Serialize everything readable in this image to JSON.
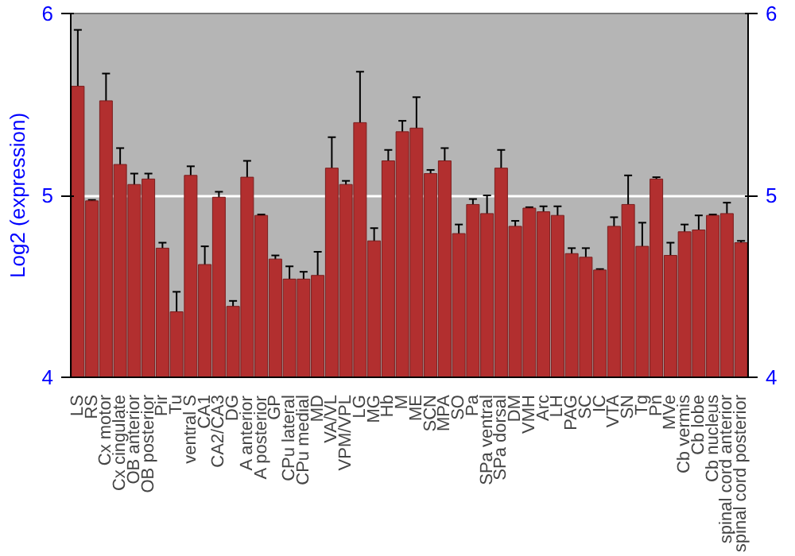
{
  "chart_data": {
    "type": "bar",
    "ylabel": "Log2 (expression)",
    "categories": [
      "LS",
      "RS",
      "Cx motor",
      "Cx cingulate",
      "OB anterior",
      "OB posterior",
      "Pir",
      "Tu",
      "ventral S",
      "CA1",
      "CA2/CA3",
      "DG",
      "A anterior",
      "A posterior",
      "GP",
      "CPu lateral",
      "CPu medial",
      "MD",
      "VA/VL",
      "VPM/VPL",
      "LG",
      "MG",
      "Hb",
      "M",
      "ME",
      "SCN",
      "MPA",
      "SO",
      "Pa",
      "SPa ventral",
      "SPa dorsal",
      "DM",
      "VMH",
      "Arc",
      "LH",
      "PAG",
      "SC",
      "IC",
      "VTA",
      "SN",
      "Tg",
      "Pn",
      "MVe",
      "Cb vermis",
      "Cb lobe",
      "Cb nucleus",
      "spinal cord anterior",
      "spinal cord posterior"
    ],
    "values": [
      5.6,
      4.97,
      5.52,
      5.17,
      5.06,
      5.09,
      4.71,
      4.36,
      5.11,
      4.62,
      4.99,
      4.39,
      5.1,
      4.89,
      4.65,
      4.54,
      4.54,
      4.56,
      5.15,
      5.06,
      5.4,
      4.75,
      5.19,
      5.35,
      5.37,
      5.12,
      5.19,
      4.79,
      4.95,
      4.9,
      5.15,
      4.83,
      4.93,
      4.91,
      4.89,
      4.68,
      4.66,
      4.59,
      4.83,
      4.95,
      4.72,
      5.09,
      4.67,
      4.8,
      4.81,
      4.89,
      4.9,
      4.74
    ],
    "errors": [
      0.31,
      0.005,
      0.15,
      0.09,
      0.06,
      0.03,
      0.03,
      0.11,
      0.05,
      0.1,
      0.03,
      0.03,
      0.09,
      0.005,
      0.02,
      0.07,
      0.04,
      0.13,
      0.17,
      0.02,
      0.28,
      0.07,
      0.06,
      0.06,
      0.17,
      0.02,
      0.07,
      0.05,
      0.03,
      0.1,
      0.1,
      0.03,
      0.005,
      0.03,
      0.05,
      0.03,
      0.05,
      0.005,
      0.05,
      0.16,
      0.13,
      0.01,
      0.07,
      0.04,
      0.08,
      0.005,
      0.06,
      0.01
    ],
    "color": "#b22f2f",
    "ylim": [
      4,
      6
    ],
    "yticks": [
      4,
      5,
      6
    ],
    "y2lim": [
      4,
      6
    ],
    "y2ticks": [
      4,
      5,
      6
    ],
    "grid": "y"
  }
}
